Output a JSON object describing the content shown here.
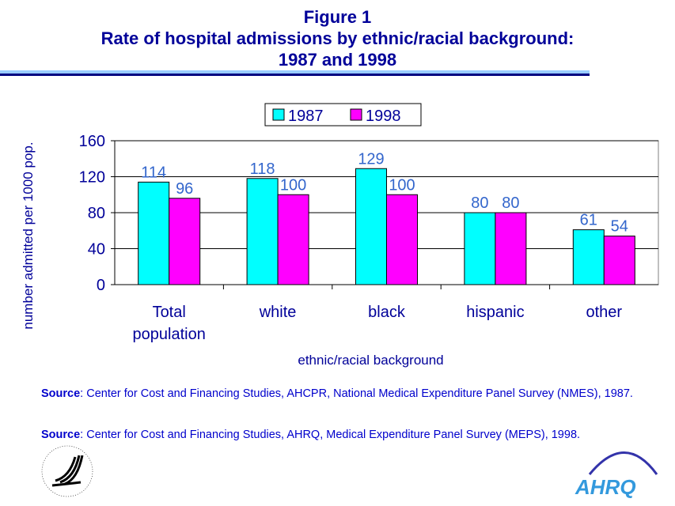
{
  "header": {
    "figure": "Figure 1",
    "title_line1": "Rate of hospital admissions by ethnic/racial background:",
    "title_line2": "1987 and 1998"
  },
  "chart_data": {
    "type": "bar",
    "categories": [
      [
        "Total",
        "population"
      ],
      [
        "white"
      ],
      [
        "black"
      ],
      [
        "hispanic"
      ],
      [
        "other"
      ]
    ],
    "series": [
      {
        "name": "1987",
        "color": "#00FFFF",
        "values": [
          114,
          118,
          129,
          80,
          61
        ]
      },
      {
        "name": "1998",
        "color": "#FF00FF",
        "values": [
          96,
          100,
          100,
          80,
          54
        ]
      }
    ],
    "xlabel": "ethnic/racial background",
    "ylabel": "number admitted per 1000 pop.",
    "ylim": [
      0,
      160
    ],
    "yticks": [
      0,
      40,
      80,
      120,
      160
    ],
    "grid": true,
    "legend": "top-center"
  },
  "sources": [
    {
      "label": "Source",
      "text": ": Center for Cost and Financing Studies, AHCPR, National Medical Expenditure Panel Survey (NMES), 1987."
    },
    {
      "label": "Source",
      "text": ": Center for Cost and Financing Studies, AHRQ, Medical Expenditure Panel Survey (MEPS), 1998."
    }
  ],
  "logos": {
    "hhs": "Department of Health & Human Services USA",
    "ahrq": "AHRQ"
  }
}
